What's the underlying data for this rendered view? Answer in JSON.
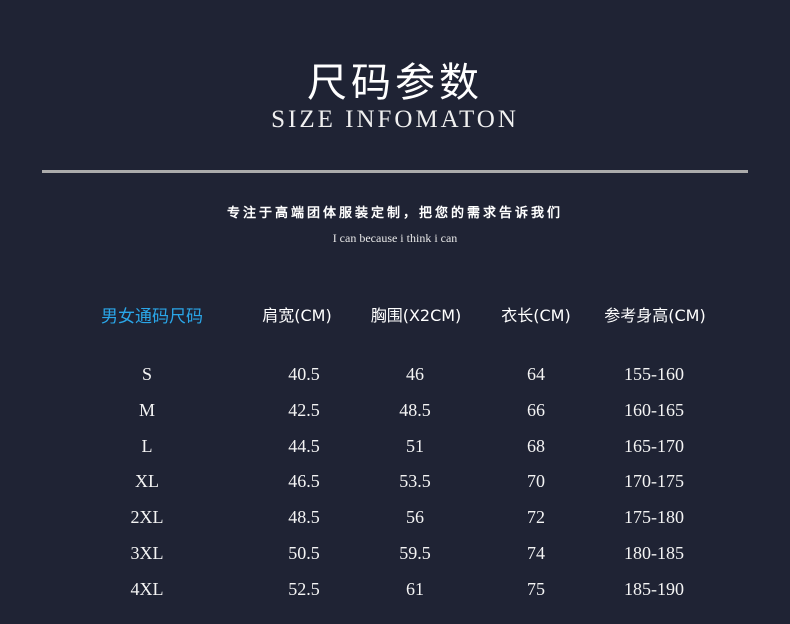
{
  "title": "尺码参数",
  "subtitle": "SIZE INFOMATON",
  "slogan": "专注于高端团体服装定制，把您的需求告诉我们",
  "motto": "I can because i think i can",
  "table": {
    "headers": [
      "男女通码尺码",
      "肩宽(CM)",
      "胸围(X2CM)",
      "衣长(CM)",
      "参考身高(CM)"
    ],
    "rows": [
      [
        "S",
        "40.5",
        "46",
        "64",
        "155-160"
      ],
      [
        "M",
        "42.5",
        "48.5",
        "66",
        "160-165"
      ],
      [
        "L",
        "44.5",
        "51",
        "68",
        "165-170"
      ],
      [
        "XL",
        "46.5",
        "53.5",
        "70",
        "170-175"
      ],
      [
        "2XL",
        "48.5",
        "56",
        "72",
        "175-180"
      ],
      [
        "3XL",
        "50.5",
        "59.5",
        "74",
        "180-185"
      ],
      [
        "4XL",
        "52.5",
        "61",
        "75",
        "185-190"
      ]
    ]
  },
  "colors": {
    "background": "#1f2334",
    "accent": "#2aa6e8",
    "rule": "#ababab"
  }
}
